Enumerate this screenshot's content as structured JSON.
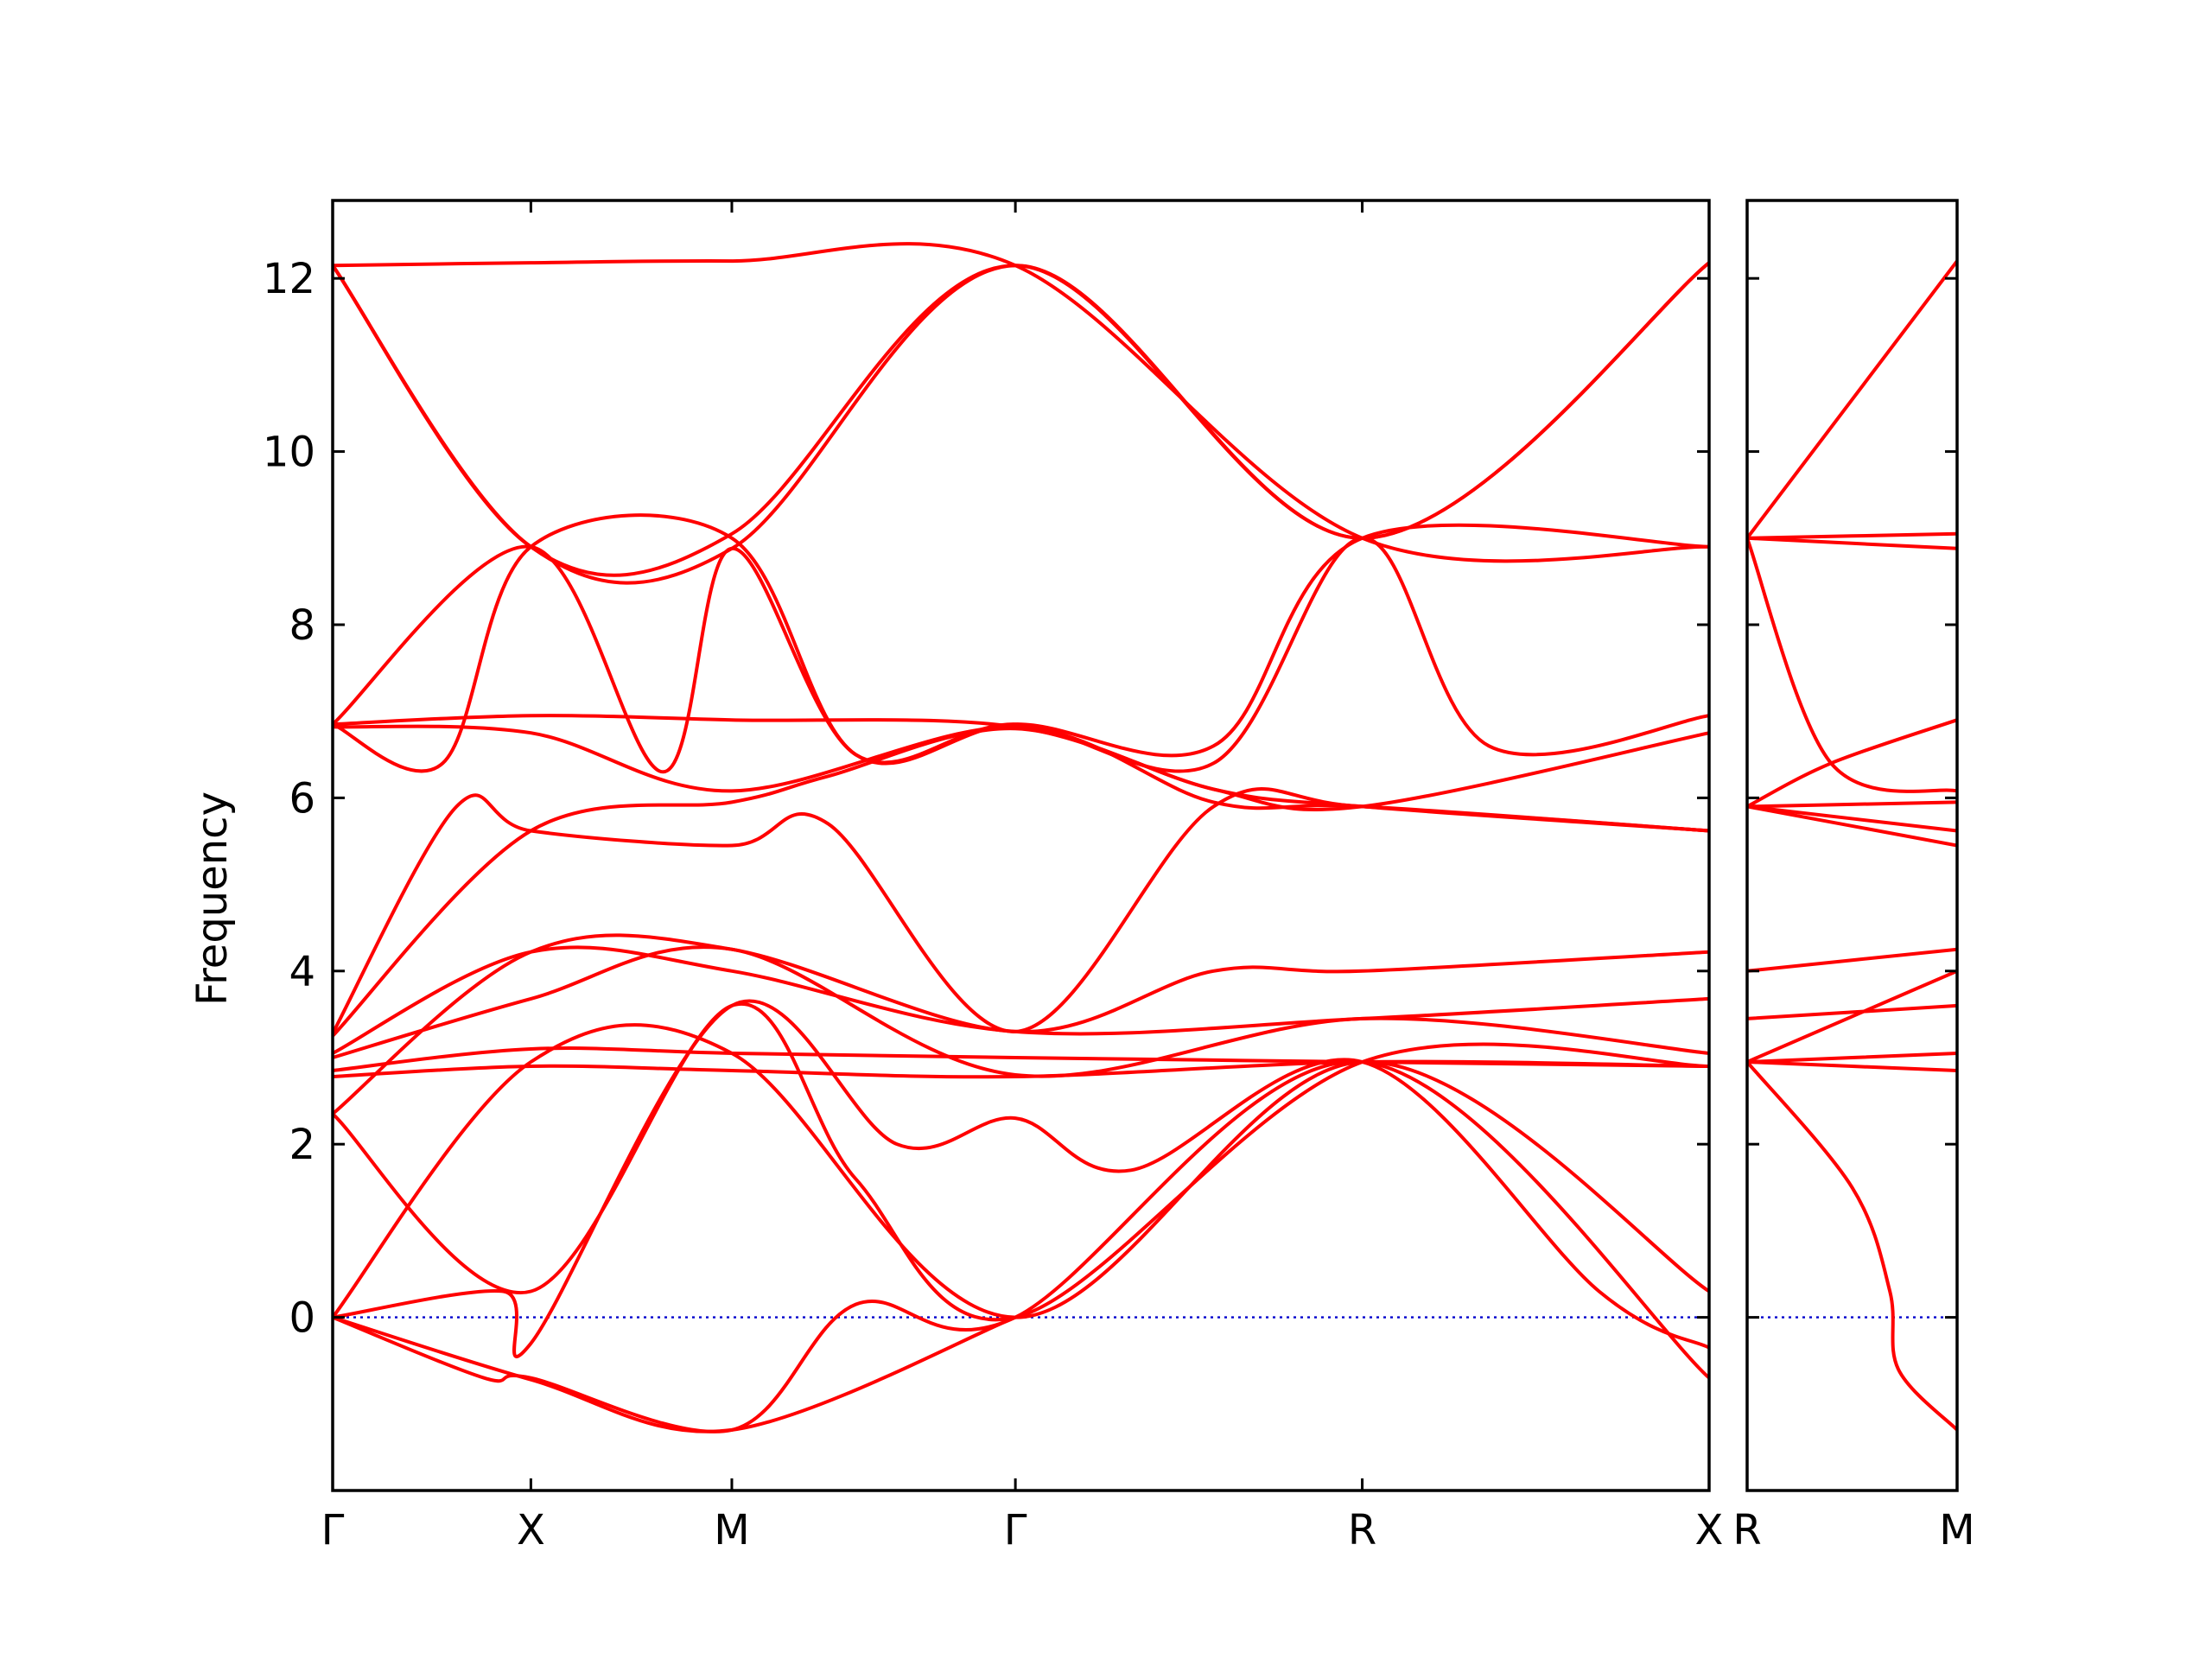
{
  "chart_data": {
    "type": "line",
    "ylabel": "Frequency",
    "ylim": [
      -2.0,
      12.9
    ],
    "yticks": [
      0,
      2,
      4,
      6,
      8,
      10,
      12
    ],
    "zero_line": true,
    "colors": {
      "bands": "#ff0000",
      "zero_line": "#0000cc"
    },
    "panels": [
      {
        "xlim": [
          0,
          5
        ],
        "ticks": [
          {
            "x": 0,
            "label": "Γ"
          },
          {
            "x": 0.72,
            "label": "X"
          },
          {
            "x": 1.45,
            "label": "M"
          },
          {
            "x": 2.48,
            "label": "Γ"
          },
          {
            "x": 3.74,
            "label": "R"
          },
          {
            "x": 5.0,
            "label": "X"
          }
        ],
        "series": [
          {
            "x": [
              0,
              0.72,
              1.45,
              2.48,
              3.74,
              5.0
            ],
            "y": [
              12.15,
              12.18,
              12.2,
              12.15,
              9.0,
              8.9
            ]
          },
          {
            "x": [
              0,
              0.72,
              1.45,
              2.48,
              3.74,
              5.0
            ],
            "y": [
              12.15,
              8.9,
              9.05,
              12.15,
              9.0,
              12.18
            ]
          },
          {
            "x": [
              0,
              0.72,
              1.45,
              2.48,
              3.74,
              5.0
            ],
            "y": [
              12.15,
              8.9,
              8.88,
              12.15,
              9.0,
              12.18
            ]
          },
          {
            "x": [
              0,
              0.4,
              0.72,
              1.45,
              1.9,
              2.48,
              3.2,
              3.74,
              5.0
            ],
            "y": [
              6.85,
              6.4,
              8.9,
              9.0,
              6.5,
              6.85,
              6.6,
              9.0,
              8.9
            ]
          },
          {
            "x": [
              0,
              0.72,
              1.2,
              1.45,
              1.9,
              2.48,
              3.2,
              3.74,
              4.2,
              5.0
            ],
            "y": [
              6.85,
              8.9,
              6.3,
              8.88,
              6.5,
              6.85,
              6.4,
              9.0,
              6.6,
              6.95
            ]
          },
          {
            "x": [
              0,
              0.72,
              1.45,
              2.48,
              3.2,
              3.74,
              5.0
            ],
            "y": [
              6.85,
              6.95,
              6.9,
              6.82,
              6.1,
              5.9,
              6.75
            ]
          },
          {
            "x": [
              0,
              0.72,
              1.45,
              2.48,
              3.2,
              3.74,
              5.0
            ],
            "y": [
              6.82,
              6.75,
              6.08,
              6.82,
              5.95,
              5.9,
              5.62
            ]
          },
          {
            "x": [
              0,
              0.45,
              0.72,
              1.45,
              1.8,
              2.48,
              3.2,
              3.74,
              5.0
            ],
            "y": [
              3.28,
              5.9,
              5.62,
              5.45,
              5.7,
              3.3,
              5.9,
              5.9,
              5.62
            ]
          },
          {
            "x": [
              0,
              0.72,
              1.45,
              1.8,
              2.48,
              3.2,
              3.74,
              5.0
            ],
            "y": [
              3.25,
              5.62,
              5.95,
              6.25,
              6.8,
              6.1,
              5.9,
              5.62
            ]
          },
          {
            "x": [
              0,
              0.72,
              1.45,
              2.48,
              3.2,
              3.74,
              5.0
            ],
            "y": [
              2.35,
              4.22,
              4.25,
              3.3,
              4.0,
              4.0,
              4.22
            ]
          },
          {
            "x": [
              0,
              0.72,
              1.45,
              2.48,
              3.74,
              5.0
            ],
            "y": [
              3.05,
              4.22,
              4.0,
              3.3,
              3.45,
              3.68
            ]
          },
          {
            "x": [
              0,
              0.72,
              1.45,
              2.48,
              3.74,
              5.0
            ],
            "y": [
              3.0,
              3.68,
              4.25,
              2.8,
              3.45,
              3.05
            ]
          },
          {
            "x": [
              0,
              0.72,
              1.45,
              2.48,
              3.74,
              5.0
            ],
            "y": [
              2.85,
              3.1,
              3.05,
              3.0,
              2.95,
              2.9
            ]
          },
          {
            "x": [
              0,
              0.72,
              1.45,
              2.48,
              3.74,
              5.0
            ],
            "y": [
              2.78,
              2.9,
              2.85,
              2.78,
              2.95,
              2.9
            ]
          },
          {
            "x": [
              0,
              0.62,
              0.72,
              1.45,
              2.05,
              2.48,
              2.9,
              3.74,
              4.6,
              5.0
            ],
            "y": [
              0.0,
              0.3,
              -0.3,
              3.6,
              2.0,
              2.3,
              1.7,
              2.95,
              0.3,
              -0.35
            ]
          },
          {
            "x": [
              0,
              0.72,
              1.45,
              2.48,
              3.74,
              5.0
            ],
            "y": [
              0.0,
              2.95,
              3.05,
              0.0,
              2.95,
              0.3
            ]
          },
          {
            "x": [
              0,
              0.72,
              1.45,
              1.9,
              2.48,
              3.74,
              5.0
            ],
            "y": [
              2.35,
              0.3,
              3.6,
              1.6,
              0.0,
              2.95,
              2.9
            ]
          },
          {
            "x": [
              0,
              0.55,
              0.72,
              1.45,
              1.9,
              2.48,
              3.74,
              5.0
            ],
            "y": [
              0.0,
              -0.7,
              -0.7,
              -1.3,
              0.15,
              0.0,
              2.95,
              -0.7
            ]
          },
          {
            "x": [
              0,
              0.72,
              1.45,
              2.48
            ],
            "y": [
              0.0,
              -0.72,
              -1.3,
              0.0
            ]
          }
        ]
      },
      {
        "xlim": [
          0,
          1
        ],
        "ticks": [
          {
            "x": 0,
            "label": "R"
          },
          {
            "x": 1.0,
            "label": "M"
          }
        ],
        "series": [
          {
            "x": [
              0,
              1.0
            ],
            "y": [
              9.0,
              12.2
            ]
          },
          {
            "x": [
              0,
              1.0
            ],
            "y": [
              9.0,
              9.05
            ]
          },
          {
            "x": [
              0,
              1.0
            ],
            "y": [
              9.0,
              8.88
            ]
          },
          {
            "x": [
              0,
              0.4,
              1.0
            ],
            "y": [
              9.0,
              6.4,
              6.08
            ]
          },
          {
            "x": [
              0,
              0.4,
              1.0
            ],
            "y": [
              5.9,
              6.4,
              6.9
            ]
          },
          {
            "x": [
              0,
              1.0
            ],
            "y": [
              5.9,
              5.95
            ]
          },
          {
            "x": [
              0,
              1.0
            ],
            "y": [
              5.9,
              5.62
            ]
          },
          {
            "x": [
              0,
              1.0
            ],
            "y": [
              5.9,
              5.45
            ]
          },
          {
            "x": [
              0,
              1.0
            ],
            "y": [
              4.0,
              4.25
            ]
          },
          {
            "x": [
              0,
              1.0
            ],
            "y": [
              3.45,
              3.6
            ]
          },
          {
            "x": [
              0,
              1.0
            ],
            "y": [
              2.95,
              4.0
            ]
          },
          {
            "x": [
              0,
              1.0
            ],
            "y": [
              2.95,
              3.05
            ]
          },
          {
            "x": [
              0,
              1.0
            ],
            "y": [
              2.95,
              2.85
            ]
          },
          {
            "x": [
              0,
              0.5,
              0.68,
              0.72,
              1.0
            ],
            "y": [
              2.95,
              1.5,
              0.3,
              -0.6,
              -1.3
            ]
          }
        ]
      }
    ]
  }
}
